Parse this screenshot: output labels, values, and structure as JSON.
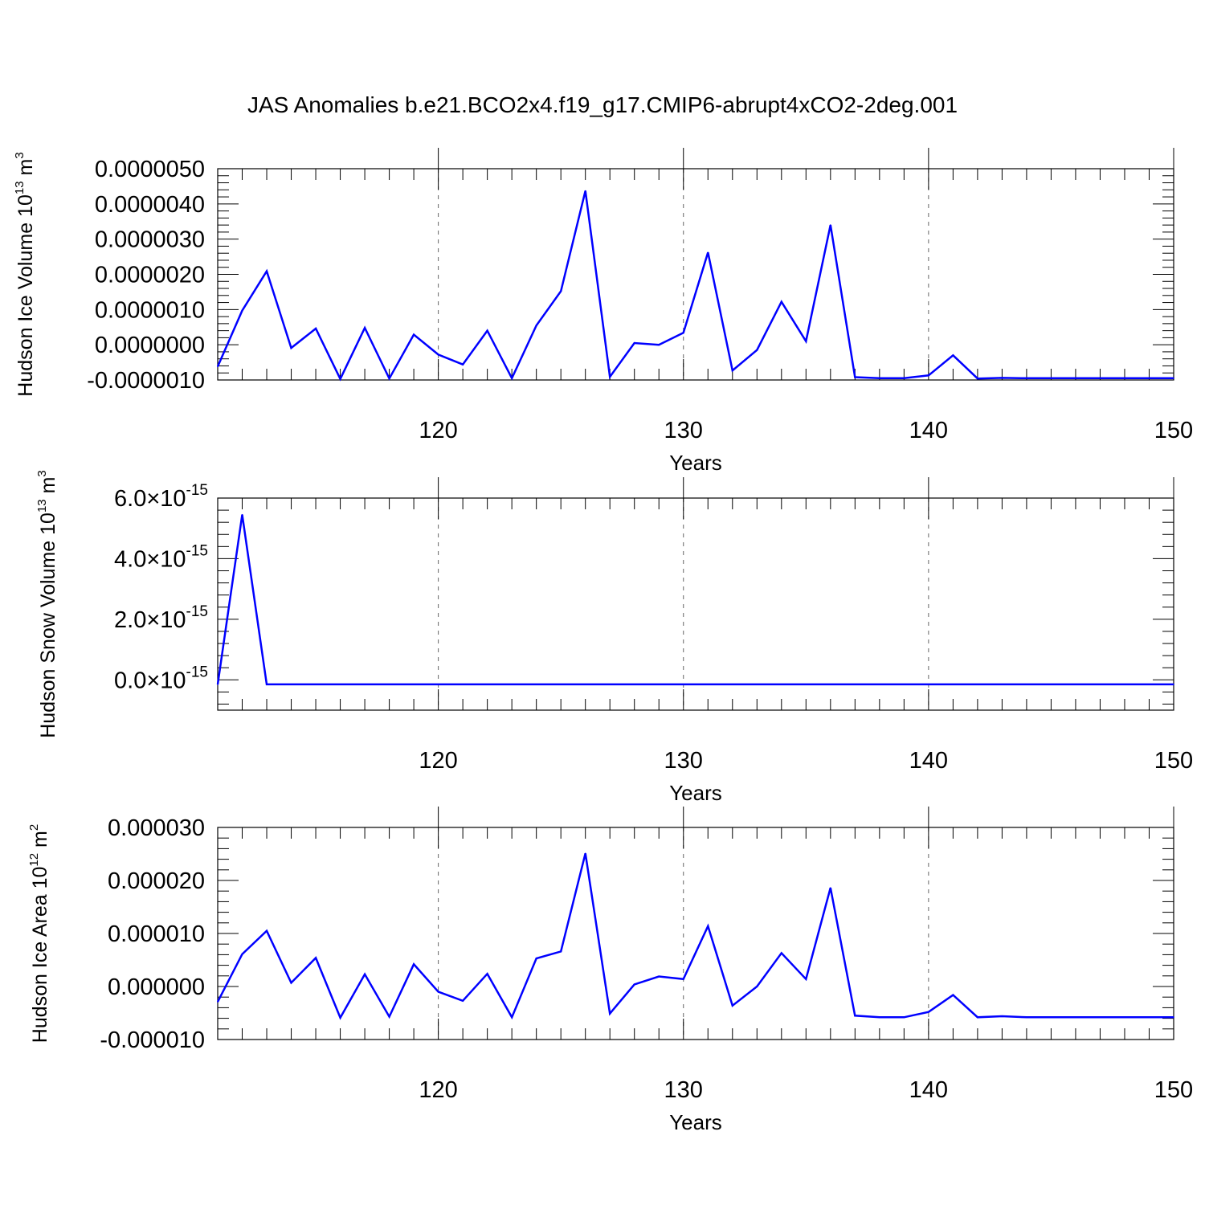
{
  "title": "JAS Anomalies b.e21.BCO2x4.f19_g17.CMIP6-abrupt4xCO2-2deg.001",
  "colors": {
    "series": "#0000ff",
    "axis": "#000000",
    "grid": "#000000"
  },
  "chart_data": [
    {
      "type": "line",
      "ylabel": {
        "text": "Hudson Ice Volume 10",
        "sup": "13",
        "unit": " m",
        "unit_sup": "3"
      },
      "xlabel": "Years",
      "xlim": [
        111,
        150
      ],
      "ylim": [
        -1e-06,
        5e-06
      ],
      "x_ticks": [
        "120",
        "130",
        "140",
        "150"
      ],
      "y_ticks": [
        "-0.0000010",
        "0.0000000",
        "0.0000010",
        "0.0000020",
        "0.0000030",
        "0.0000040",
        "0.0000050"
      ],
      "vgrid_at": [
        120,
        130,
        140
      ],
      "grid": "vertical dashed",
      "x": [
        111,
        112,
        113,
        114,
        115,
        116,
        117,
        118,
        119,
        120,
        121,
        122,
        123,
        124,
        125,
        126,
        127,
        128,
        129,
        130,
        131,
        132,
        133,
        134,
        135,
        136,
        137,
        138,
        139,
        140,
        141,
        142,
        143,
        144,
        145,
        146,
        147,
        148,
        149,
        150
      ],
      "values": [
        -6.2e-07,
        9.7e-07,
        2.09e-06,
        -9e-08,
        4.6e-07,
        -9.7e-07,
        4.8e-07,
        -9.6e-07,
        2.9e-07,
        -2.8e-07,
        -5.6e-07,
        4e-07,
        -9.5e-07,
        5.5e-07,
        1.52e-06,
        4.37e-06,
        -9.1e-07,
        5e-08,
        0.0,
        3.4e-07,
        2.62e-06,
        -7.3e-07,
        -1.5e-07,
        1.22e-06,
        1e-07,
        3.4e-06,
        -9.2e-07,
        -9.5e-07,
        -9.5e-07,
        -8.7e-07,
        -3e-07,
        -9.6e-07,
        -9.4e-07,
        -9.5e-07,
        -9.5e-07,
        -9.5e-07,
        -9.5e-07,
        -9.5e-07,
        -9.5e-07,
        -9.5e-07
      ]
    },
    {
      "type": "line",
      "ylabel": {
        "text": "Hudson Snow Volume 10",
        "sup": "13",
        "unit": " m",
        "unit_sup": "3"
      },
      "xlabel": "Years",
      "xlim": [
        111,
        150
      ],
      "ylim": [
        -1e-15,
        6e-15
      ],
      "x_ticks": [
        "120",
        "130",
        "140",
        "150"
      ],
      "y_ticks": [
        "0.0",
        "2.0",
        "4.0",
        "6.0"
      ],
      "y_tick_multiplier": "10",
      "y_tick_exponent": "-15",
      "vgrid_at": [
        120,
        130,
        140
      ],
      "grid": "vertical dashed",
      "x": [
        111,
        112,
        113,
        114,
        115,
        116,
        117,
        118,
        119,
        120,
        121,
        122,
        123,
        124,
        125,
        126,
        127,
        128,
        129,
        130,
        131,
        132,
        133,
        134,
        135,
        136,
        137,
        138,
        139,
        140,
        141,
        142,
        143,
        144,
        145,
        146,
        147,
        148,
        149,
        150
      ],
      "values": [
        -1.5e-16,
        5.45e-15,
        -1.5e-16,
        -1.5e-16,
        -1.5e-16,
        -1.5e-16,
        -1.5e-16,
        -1.5e-16,
        -1.5e-16,
        -1.5e-16,
        -1.5e-16,
        -1.5e-16,
        -1.5e-16,
        -1.5e-16,
        -1.5e-16,
        -1.5e-16,
        -1.5e-16,
        -1.5e-16,
        -1.5e-16,
        -1.5e-16,
        -1.5e-16,
        -1.5e-16,
        -1.5e-16,
        -1.5e-16,
        -1.5e-16,
        -1.5e-16,
        -1.5e-16,
        -1.5e-16,
        -1.5e-16,
        -1.5e-16,
        -1.5e-16,
        -1.5e-16,
        -1.5e-16,
        -1.5e-16,
        -1.5e-16,
        -1.5e-16,
        -1.5e-16,
        -1.5e-16,
        -1.5e-16,
        -1.5e-16
      ]
    },
    {
      "type": "line",
      "ylabel": {
        "text": "Hudson Ice Area 10",
        "sup": "12",
        "unit": " m",
        "unit_sup": "2"
      },
      "xlabel": "Years",
      "xlim": [
        111,
        150
      ],
      "ylim": [
        -1e-05,
        3e-05
      ],
      "x_ticks": [
        "120",
        "130",
        "140",
        "150"
      ],
      "y_ticks": [
        "-0.000010",
        "0.000000",
        "0.000010",
        "0.000020",
        "0.000030"
      ],
      "vgrid_at": [
        120,
        130,
        140
      ],
      "grid": "vertical dashed",
      "x": [
        111,
        112,
        113,
        114,
        115,
        116,
        117,
        118,
        119,
        120,
        121,
        122,
        123,
        124,
        125,
        126,
        127,
        128,
        129,
        130,
        131,
        132,
        133,
        134,
        135,
        136,
        137,
        138,
        139,
        140,
        141,
        142,
        143,
        144,
        145,
        146,
        147,
        148,
        149,
        150
      ],
      "values": [
        -2.9e-06,
        6.1e-06,
        1.05e-05,
        7e-07,
        5.4e-06,
        -5.9e-06,
        2.3e-06,
        -5.7e-06,
        4.2e-06,
        -1e-06,
        -2.7e-06,
        2.4e-06,
        -5.8e-06,
        5.3e-06,
        6.6e-06,
        2.51e-05,
        -5.1e-06,
        4e-07,
        1.9e-06,
        1.4e-06,
        1.14e-05,
        -3.6e-06,
        0.0,
        6.3e-06,
        1.4e-06,
        1.86e-05,
        -5.5e-06,
        -5.8e-06,
        -5.8e-06,
        -4.8e-06,
        -1.6e-06,
        -5.8e-06,
        -5.6e-06,
        -5.8e-06,
        -5.8e-06,
        -5.8e-06,
        -5.8e-06,
        -5.8e-06,
        -5.8e-06,
        -5.8e-06
      ]
    }
  ]
}
